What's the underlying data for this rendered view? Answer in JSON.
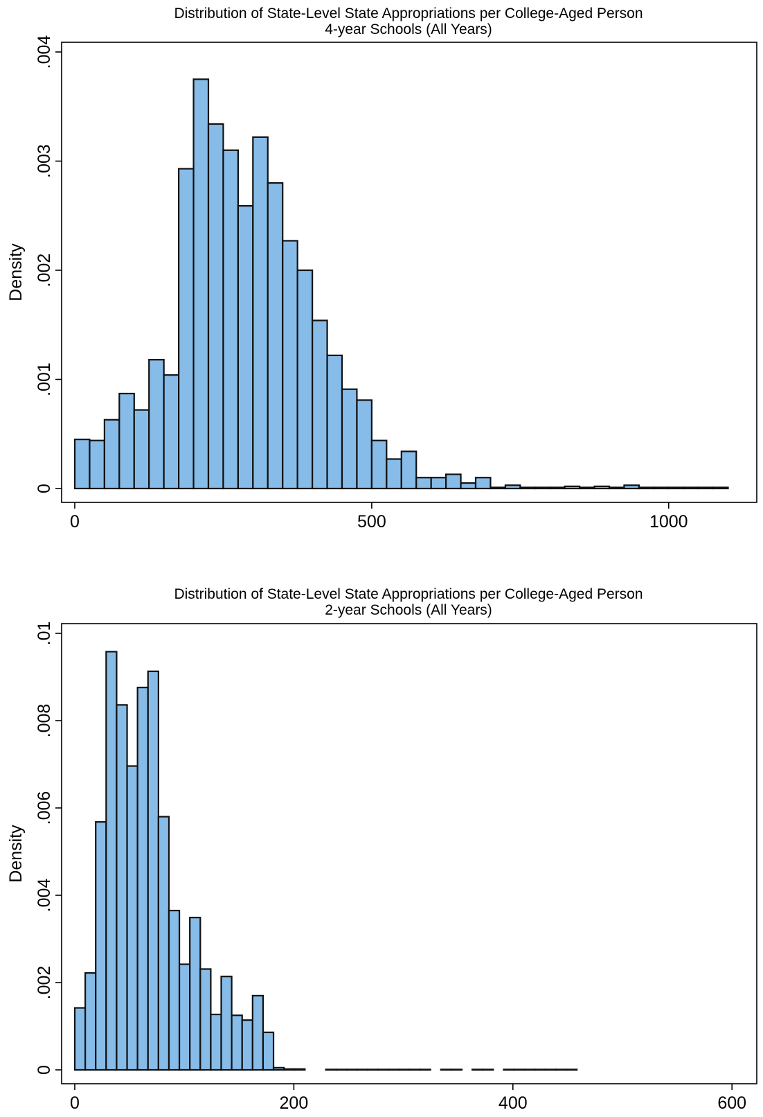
{
  "chart_data": [
    {
      "type": "bar",
      "title": "Distribution of State-Level State Appropriations per College-Aged Person",
      "subtitle": "4-year Schools (All Years)",
      "xlabel": "",
      "ylabel": "Density",
      "xlim": [
        0,
        1125
      ],
      "ylim": [
        0,
        0.004
      ],
      "xticks": [
        0,
        500,
        1000
      ],
      "xtick_labels": [
        "0",
        "500",
        "1000"
      ],
      "yticks": [
        0,
        0.001,
        0.002,
        0.003,
        0.004
      ],
      "ytick_labels": [
        "0",
        ".001",
        ".002",
        ".003",
        ".004"
      ],
      "grid": false,
      "bin_start": 0,
      "bin_width": 25,
      "values": [
        0.00045,
        0.00044,
        0.00063,
        0.00087,
        0.00072,
        0.00118,
        0.00104,
        0.00293,
        0.00375,
        0.00334,
        0.0031,
        0.00259,
        0.00322,
        0.0028,
        0.00227,
        0.002,
        0.00154,
        0.00122,
        0.00091,
        0.00081,
        0.00044,
        0.00027,
        0.00034,
        0.0001,
        0.0001,
        0.00013,
        5e-05,
        0.0001,
        1e-05,
        3e-05,
        1e-05,
        1e-05,
        1e-05,
        2e-05,
        1e-05,
        2e-05,
        1e-05,
        3e-05,
        1e-05,
        1e-05,
        1e-05,
        1e-05,
        1e-05,
        1e-05
      ]
    },
    {
      "type": "bar",
      "title": "Distribution of State-Level State Appropriations per College-Aged Person",
      "subtitle": "2-year Schools (All Years)",
      "xlabel": "",
      "ylabel": "Density",
      "xlim": [
        0,
        610
      ],
      "ylim": [
        0,
        0.01
      ],
      "xticks": [
        0,
        200,
        400,
        600
      ],
      "xtick_labels": [
        "0",
        "200",
        "400",
        "600"
      ],
      "yticks": [
        0,
        0.002,
        0.004,
        0.006,
        0.008,
        0.01
      ],
      "ytick_labels": [
        "0",
        ".002",
        ".004",
        ".006",
        ".008",
        ".01"
      ],
      "grid": false,
      "bin_start": 0,
      "bin_width": 9.55,
      "values": [
        0.00142,
        0.00222,
        0.00568,
        0.00958,
        0.00836,
        0.00696,
        0.00876,
        0.00913,
        0.0058,
        0.00365,
        0.00242,
        0.00349,
        0.00231,
        0.00127,
        0.00214,
        0.00125,
        0.00114,
        0.0017,
        0.00086,
        5e-05,
        2e-05,
        2e-05,
        0.0,
        0.0,
        1e-05,
        1e-05,
        1e-05,
        1e-05,
        1e-05,
        1e-05,
        1e-05,
        1e-05,
        1e-05,
        1e-05,
        0.0,
        1e-05,
        1e-05,
        0.0,
        1e-05,
        1e-05,
        0.0,
        1e-05,
        1e-05,
        1e-05,
        1e-05,
        1e-05,
        1e-05,
        1e-05
      ]
    }
  ]
}
